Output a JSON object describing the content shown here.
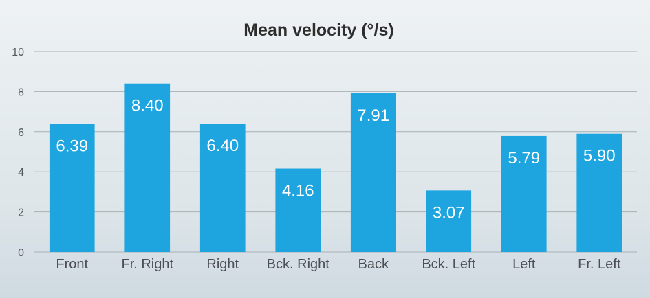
{
  "chart_data": {
    "type": "bar",
    "title": "Mean velocity (°/s)",
    "xlabel": "",
    "ylabel": "",
    "categories": [
      "Front",
      "Fr. Right",
      "Right",
      "Bck. Right",
      "Back",
      "Bck. Left",
      "Left",
      "Fr. Left"
    ],
    "values": [
      6.39,
      8.4,
      6.4,
      4.16,
      7.91,
      3.07,
      5.79,
      5.9
    ],
    "value_labels": [
      "6.39",
      "8.40",
      "6.40",
      "4.16",
      "7.91",
      "3.07",
      "5.79",
      "5.90"
    ],
    "ylim": [
      0,
      10
    ],
    "yticks": [
      "0",
      "2",
      "4",
      "6",
      "8",
      "10"
    ],
    "grid": true,
    "legend": "none",
    "bar_color": "#1ea5df",
    "grid_color": "#a8b0b4"
  }
}
